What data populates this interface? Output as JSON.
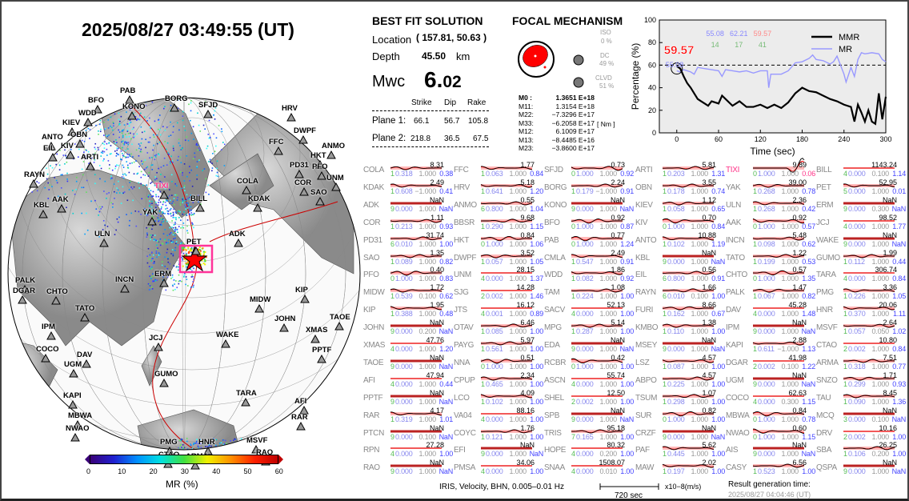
{
  "header": {
    "datetime": "2025/08/27  03:49:55 (UT)"
  },
  "best_fit": {
    "title": "BEST FIT SOLUTION",
    "location_label": "Location",
    "location_value": "( 157.81,  50.63 )",
    "depth_label": "Depth",
    "depth_value": "45.50",
    "depth_unit": "km",
    "mw_label": "Mwc",
    "mw_int": "6.",
    "mw_dec": "02",
    "plane_headers": [
      "Strike",
      "Dip",
      "Rake"
    ],
    "planes": [
      {
        "label": "Plane 1:",
        "strike": "66.1",
        "dip": "56.7",
        "rake": "105.8"
      },
      {
        "label": "Plane 2:",
        "strike": "218.8",
        "dip": "36.5",
        "rake": "67.5"
      }
    ]
  },
  "focal": {
    "title": "FOCAL MECHANISM",
    "iso_label": "ISO",
    "iso_value": "0 %",
    "dc_label": "DC",
    "dc_value": "49 %",
    "clvd_label": "CLVD",
    "clvd_value": "51 %",
    "unit": "[ Nm ]",
    "tensor": [
      [
        "M0  :",
        "1.3651 E+18"
      ],
      [
        "M11:",
        "1.3154 E+18"
      ],
      [
        "M22:",
        "−7.3296 E+17"
      ],
      [
        "M33:",
        "−6.2058 E+17"
      ],
      [
        "M12:",
        "6.1009 E+17"
      ],
      [
        "M13:",
        "−8.4485 E+16"
      ],
      [
        "M23:",
        "−3.8600 E+17"
      ]
    ]
  },
  "chart_data": {
    "type": "line",
    "xlabel": "Time (sec)",
    "ylabel": "Percentage (%)",
    "xlim": [
      -25,
      300
    ],
    "ylim": [
      0,
      100
    ],
    "xticks": [
      0,
      60,
      120,
      180,
      240,
      300
    ],
    "yticks": [
      0,
      20,
      40,
      60,
      80,
      100
    ],
    "reference_line": 60,
    "highlight": {
      "value": "59.57",
      "sub": "55.08",
      "color": "#ff0000"
    },
    "top_values": [
      {
        "text": "55.08",
        "color": "#8888ff"
      },
      {
        "text": "62.21",
        "color": "#8888ff"
      },
      {
        "text": "59.57",
        "color": "#ff8888"
      }
    ],
    "top_counts": [
      {
        "text": "14",
        "color": "#77bb77"
      },
      {
        "text": "17",
        "color": "#77bb77"
      },
      {
        "text": "41",
        "color": "#77bb77"
      }
    ],
    "legend_position": "top-right",
    "series": [
      {
        "name": "MR",
        "color": "#9999ff",
        "x": [
          0,
          5,
          10,
          20,
          25,
          30,
          40,
          50,
          60,
          65,
          70,
          80,
          90,
          100,
          110,
          120,
          130,
          132,
          135,
          150,
          160,
          170,
          180,
          190,
          195,
          200,
          210,
          220,
          225,
          230,
          235,
          240,
          243,
          250,
          255,
          260,
          265,
          270,
          280,
          290,
          295,
          300
        ],
        "y": [
          55,
          54,
          56,
          54,
          52,
          58,
          57,
          56,
          55,
          50,
          56,
          55,
          54,
          55,
          53,
          55,
          55,
          40,
          52,
          52,
          55,
          62,
          63,
          66,
          69,
          65,
          64,
          61,
          63,
          68,
          60,
          52,
          45,
          58,
          50,
          65,
          71,
          70,
          71,
          70,
          65,
          63
        ]
      },
      {
        "name": "MMR",
        "color": "#000000",
        "x": [
          0,
          5,
          10,
          15,
          20,
          25,
          30,
          35,
          40,
          45,
          50,
          60,
          65,
          70,
          80,
          90,
          100,
          110,
          120,
          130,
          140,
          150,
          160,
          170,
          180,
          190,
          200,
          210,
          220,
          230,
          240,
          250,
          255,
          260,
          265,
          270,
          275,
          280,
          285,
          290,
          295,
          300
        ],
        "y": [
          59,
          57,
          50,
          44,
          40,
          35,
          30,
          28,
          26,
          24,
          28,
          26,
          33,
          30,
          24,
          28,
          23,
          23,
          25,
          22,
          25,
          22,
          27,
          35,
          40,
          37,
          36,
          33,
          30,
          28,
          25,
          23,
          10,
          25,
          18,
          10,
          20,
          10,
          8,
          35,
          12,
          32
        ]
      }
    ]
  },
  "map": {
    "colorbar_label": "MR (%)",
    "colorbar_ticks": [
      "0",
      "10",
      "20",
      "30",
      "40",
      "50",
      "60"
    ],
    "stations": [
      "PAB",
      "BFO",
      "KONO",
      "BORG",
      "SFJD",
      "HRV",
      "WDD",
      "KIEV",
      "OBN",
      "DWPF",
      "ANTO",
      "EIL",
      "KIV",
      "FFC",
      "ARTI",
      "HKT",
      "PD31",
      "ANMO",
      "PFO",
      "UNM",
      "COR",
      "SAO",
      "RAYN",
      "TIXI",
      "COLA",
      "KDAK",
      "AAK",
      "KBL",
      "BILL",
      "YAK",
      "ULN",
      "PET",
      "ADK",
      "INCN",
      "ERM",
      "PALK",
      "DGAR",
      "CHTO",
      "KIP",
      "MIDW",
      "TATO",
      "JOHN",
      "TAOE",
      "JCJ",
      "IPM",
      "WAKE",
      "XMAS",
      "COCO",
      "DAV",
      "UGM",
      "PPTF",
      "GUMO",
      "KAPI",
      "TARA",
      "AFI",
      "RAR",
      "MBWA",
      "NWAO",
      "PMG",
      "HNR",
      "MSVF",
      "RAO",
      "CTAO",
      "ARMA"
    ],
    "highlight_station": "TIXI",
    "highlight_color": "#ff3388"
  },
  "stations": [
    [
      [
        "COLA",
        "8.31",
        "1",
        "0.318",
        "1.000",
        "0.38"
      ],
      [
        "KDAK",
        "2.49",
        "1",
        "0.608",
        "−1.000",
        "0.41"
      ],
      [
        "ADK",
        "NaN",
        "9",
        "0.000",
        "1.000",
        "NaN"
      ],
      [
        "COR",
        "1.11",
        "1",
        "0.213",
        "1.000",
        "0.93"
      ],
      [
        "PD31",
        "31.74",
        "6",
        "0.010",
        "1.000",
        "1.00"
      ],
      [
        "SAO",
        "1.35",
        "1",
        "0.089",
        "1.000",
        "0.82"
      ],
      [
        "PFO",
        "0.40",
        "0",
        "1.000",
        "1.000",
        "0.83"
      ],
      [
        "MIDW",
        "1.72",
        "1",
        "0.539",
        "0.100",
        "0.62"
      ],
      [
        "KIP",
        "1.95",
        "1",
        "0.388",
        "1.000",
        "0.48"
      ],
      [
        "JOHN",
        "NaN",
        "9",
        "0.000",
        "0.200",
        "NaN"
      ],
      [
        "XMAS",
        "47.76",
        "4",
        "0.000",
        "1.000",
        "1.20"
      ],
      [
        "TAOE",
        "NaN",
        "9",
        "0.000",
        "1.000",
        "NaN"
      ],
      [
        "AFI",
        "47.94",
        "4",
        "0.000",
        "1.000",
        "0.44"
      ],
      [
        "PPTF",
        "NaN",
        "9",
        "0.000",
        "1.000",
        "NaN"
      ],
      [
        "RAR",
        "4.17",
        "1",
        "0.319",
        "1.000",
        "1.01"
      ],
      [
        "PTCN",
        "NaN",
        "9",
        "0.000",
        "0.100",
        "NaN"
      ],
      [
        "RPN",
        "27.28",
        "4",
        "0.000",
        "1.000",
        "1.00"
      ],
      [
        "RAO",
        "NaN",
        "9",
        "0.000",
        "1.000",
        "NaN"
      ]
    ],
    [
      [
        "FFC",
        "1.77",
        "1",
        "0.063",
        "1.000",
        "0.84"
      ],
      [
        "HRV",
        "5.18",
        "1",
        "0.641",
        "1.000",
        "1.20"
      ],
      [
        "ANMO",
        "0.55",
        "6",
        "0.800",
        "1.000",
        "1.04"
      ],
      [
        "BBSR",
        "9.68",
        "1",
        "0.290",
        "1.000",
        "1.15"
      ],
      [
        "HKT",
        "0.84",
        "0",
        "1.000",
        "1.000",
        "1.06"
      ],
      [
        "DWPF",
        "3.52",
        "1",
        "0.057",
        "1.000",
        "1.05"
      ],
      [
        "UNM",
        "28.15",
        "4",
        "0.000",
        "1.000",
        "1.37"
      ],
      [
        "SJG",
        "14.28",
        "2",
        "0.002",
        "1.000",
        "1.46"
      ],
      [
        "JTS",
        "16.12",
        "4",
        "0.001",
        "1.000",
        "0.89"
      ],
      [
        "OTAV",
        "6.46",
        "1",
        "0.085",
        "1.000",
        "1.00"
      ],
      [
        "PAYG",
        "5.97",
        "1",
        "0.561",
        "1.000",
        "1.00"
      ],
      [
        "NNA",
        "0.51",
        "0",
        "1.000",
        "1.000",
        "1.00"
      ],
      [
        "CPUP",
        "2.34",
        "1",
        "0.465",
        "1.000",
        "1.00"
      ],
      [
        "LCO",
        "4.09",
        "1",
        "0.102",
        "1.000",
        "1.00"
      ],
      [
        "VA04",
        "88.16",
        "4",
        "0.000",
        "1.000",
        "1.00"
      ],
      [
        "COYC",
        "1.76",
        "1",
        "0.121",
        "1.000",
        "1.00"
      ],
      [
        "EFI",
        "NaN",
        "9",
        "0.000",
        "1.000",
        "NaN"
      ],
      [
        "PMSA",
        "34.06",
        "4",
        "0.000",
        "1.000",
        "1.00"
      ]
    ],
    [
      [
        "SFJD",
        "0.73",
        "0",
        "1.000",
        "1.000",
        "0.92"
      ],
      [
        "BORG",
        "2.24",
        "1",
        "0.179",
        "−1.000",
        "0.91"
      ],
      [
        "KONO",
        "NaN",
        "9",
        "0.000",
        "1.000",
        "NaN"
      ],
      [
        "BFO",
        "0.92",
        "0",
        "1.000",
        "1.000",
        "0.87"
      ],
      [
        "PAB",
        "0.77",
        "0",
        "1.000",
        "1.000",
        "1.24"
      ],
      [
        "CMLA",
        "2.49",
        "1",
        "0.547",
        "1.000",
        "0.91"
      ],
      [
        "WDD",
        "1.86",
        "1",
        "0.082",
        "1.000",
        "0.92"
      ],
      [
        "TAM",
        "1.08",
        "1",
        "0.224",
        "1.000",
        "1.00"
      ],
      [
        "SACV",
        "52.13",
        "4",
        "0.000",
        "1.000",
        "1.00"
      ],
      [
        "MPG",
        "5.14",
        "1",
        "0.287",
        "1.000",
        "1.00"
      ],
      [
        "EDA",
        "NaN",
        "9",
        "0.000",
        "1.000",
        "NaN"
      ],
      [
        "RCBR",
        "0.42",
        "0",
        "1.000",
        "1.000",
        "1.00"
      ],
      [
        "ASCN",
        "55.74",
        "4",
        "0.000",
        "1.000",
        "1.00"
      ],
      [
        "SHEL",
        "12.50",
        "2",
        "0.002",
        "1.000",
        "1.00"
      ],
      [
        "SPB",
        "NaN",
        "9",
        "0.000",
        "1.000",
        "NaN"
      ],
      [
        "TRIS",
        "95.18",
        "7",
        "0.165",
        "1.000",
        "1.00"
      ],
      [
        "HOPE",
        "80.32",
        "4",
        "0.000",
        "0.200",
        "1.00"
      ],
      [
        "SNAA",
        "1508.07",
        "4",
        "0.000",
        "0.010",
        "1.00"
      ]
    ],
    [
      [
        "ARTI",
        "5.81",
        "1",
        "0.203",
        "1.000",
        "1.31"
      ],
      [
        "OBN",
        "3.55",
        "1",
        "0.178",
        "1.000",
        "0.74"
      ],
      [
        "KIEV",
        "1.12",
        "1",
        "0.058",
        "1.000",
        "0.65"
      ],
      [
        "KIV",
        "0.70",
        "0",
        "1.000",
        "1.000",
        "0.84"
      ],
      [
        "ANTO",
        "10.88",
        "1",
        "0.102",
        "1.000",
        "1.19"
      ],
      [
        "KBL",
        "NaN",
        "9",
        "0.000",
        "1.000",
        "NaN"
      ],
      [
        "EIL",
        "0.56",
        "6",
        "0.800",
        "1.000",
        "0.91"
      ],
      [
        "RAYN",
        "1.66",
        "6",
        "0.010",
        "0.100",
        "1.00"
      ],
      [
        "FURI",
        "8.66",
        "1",
        "0.162",
        "1.000",
        "0.67"
      ],
      [
        "KMBO",
        "1.38",
        "1",
        "0.110",
        "1.000",
        "1.00"
      ],
      [
        "MSEY",
        "NaN",
        "9",
        "0.000",
        "1.000",
        "NaN"
      ],
      [
        "LSZ",
        "4.57",
        "1",
        "0.087",
        "1.000",
        "1.00"
      ],
      [
        "ABPO",
        "4.57",
        "1",
        "0.225",
        "1.000",
        "1.00"
      ],
      [
        "TSUM",
        "1.07",
        "1",
        "0.298",
        "1.000",
        "1.00"
      ],
      [
        "SUR",
        "0.82",
        "0",
        "1.000",
        "1.000",
        "1.00"
      ],
      [
        "CRZF",
        "NaN",
        "9",
        "0.000",
        "1.000",
        "NaN"
      ],
      [
        "PAF",
        "5.62",
        "1",
        "0.445",
        "1.000",
        "1.00"
      ],
      [
        "MAW",
        "2.02",
        "1",
        "0.197",
        "1.000",
        "1.00"
      ]
    ],
    [
      [
        "TIXI",
        "9.89",
        "0",
        "1.000",
        "1.000",
        "0.06"
      ],
      [
        "YAK",
        "39.00",
        "1",
        "0.268",
        "1.000",
        "0.78"
      ],
      [
        "ULN",
        "2.36",
        "1",
        "0.268",
        "1.000",
        "0.42"
      ],
      [
        "AAK",
        "0.92",
        "0",
        "1.000",
        "1.000",
        "0.57"
      ],
      [
        "INCN",
        "5.48",
        "1",
        "0.098",
        "1.000",
        "0.62"
      ],
      [
        "TATO",
        "1.22",
        "1",
        "0.199",
        "1.000",
        "0.53"
      ],
      [
        "CHTO",
        "0.57",
        "0",
        "1.000",
        "1.000",
        "1.35"
      ],
      [
        "PALK",
        "1.47",
        "1",
        "0.067",
        "1.000",
        "0.82"
      ],
      [
        "DAV",
        "45.28",
        "4",
        "0.000",
        "1.000",
        "1.48"
      ],
      [
        "IPM",
        "NaN",
        "9",
        "0.000",
        "1.000",
        "NaN"
      ],
      [
        "KAPI",
        "2.88",
        "1",
        "0.611",
        "−1.000",
        "1.13"
      ],
      [
        "DGAR",
        "41.98",
        "2",
        "0.002",
        "0.100",
        "1.22"
      ],
      [
        "UGM",
        "NaN",
        "9",
        "0.000",
        "1.000",
        "NaN"
      ],
      [
        "COCO",
        "62.63",
        "4",
        "0.000",
        "0.300",
        "1.15"
      ],
      [
        "MBWA",
        "0.84",
        "0",
        "1.000",
        "1.000",
        "0.78"
      ],
      [
        "NWAO",
        "0.60",
        "0",
        "1.000",
        "1.000",
        "1.15"
      ],
      [
        "AIS",
        "NaN",
        "9",
        "0.000",
        "1.000",
        "NaN"
      ],
      [
        "CASY",
        "6.56",
        "1",
        "0.523",
        "1.000",
        "1.00"
      ]
    ],
    [
      [
        "BILL",
        "1143.24",
        "4",
        "0.000",
        "0.100",
        "1.14"
      ],
      [
        "PET",
        "52.95",
        "5",
        "0.000",
        "1.000",
        "0.01"
      ],
      [
        "ERM",
        "NaN",
        "9",
        "0.000",
        "0.300",
        "NaN"
      ],
      [
        "JCJ",
        "98.52",
        "4",
        "0.000",
        "1.000",
        "1.77"
      ],
      [
        "WAKE",
        "NaN",
        "9",
        "0.000",
        "1.000",
        "NaN"
      ],
      [
        "GUMO",
        "1.99",
        "1",
        "0.112",
        "1.000",
        "0.44"
      ],
      [
        "TARA",
        "306.74",
        "4",
        "0.000",
        "1.000",
        "0.84"
      ],
      [
        "PMG",
        "3.36",
        "1",
        "0.226",
        "1.000",
        "1.05"
      ],
      [
        "HNR",
        "20.06",
        "1",
        "0.370",
        "1.000",
        "1.11"
      ],
      [
        "MSVF",
        "2.64",
        "1",
        "0.057",
        "0.050",
        "1.02"
      ],
      [
        "CTAO",
        "10.80",
        "2",
        "0.002",
        "1.000",
        "0.84"
      ],
      [
        "ARMA",
        "7.51",
        "1",
        "0.318",
        "1.000",
        "0.77"
      ],
      [
        "SNZO",
        "1.71",
        "1",
        "0.299",
        "1.000",
        "0.93"
      ],
      [
        "TAU",
        "8.45",
        "1",
        "0.090",
        "1.000",
        "1.36"
      ],
      [
        "MCQ",
        "NaN",
        "3",
        "0.000",
        "0.100",
        "NaN"
      ],
      [
        "DRV",
        "10.16",
        "2",
        "0.002",
        "1.000",
        "1.00"
      ],
      [
        "SBA",
        "26.25",
        "1",
        "0.106",
        "0.200",
        "1.00"
      ],
      [
        "QSPA",
        "NaN",
        "9",
        "0.000",
        "1.000",
        "NaN"
      ]
    ]
  ],
  "footer": {
    "info": "IRIS, Velocity,   BHN,  0.005–0.01 Hz",
    "scale_label": "720 sec",
    "units": "x10−8(m/s)",
    "gen_label": "Result generation time:",
    "gen_time": "2025/08/27 04:04:46 (UT)"
  }
}
